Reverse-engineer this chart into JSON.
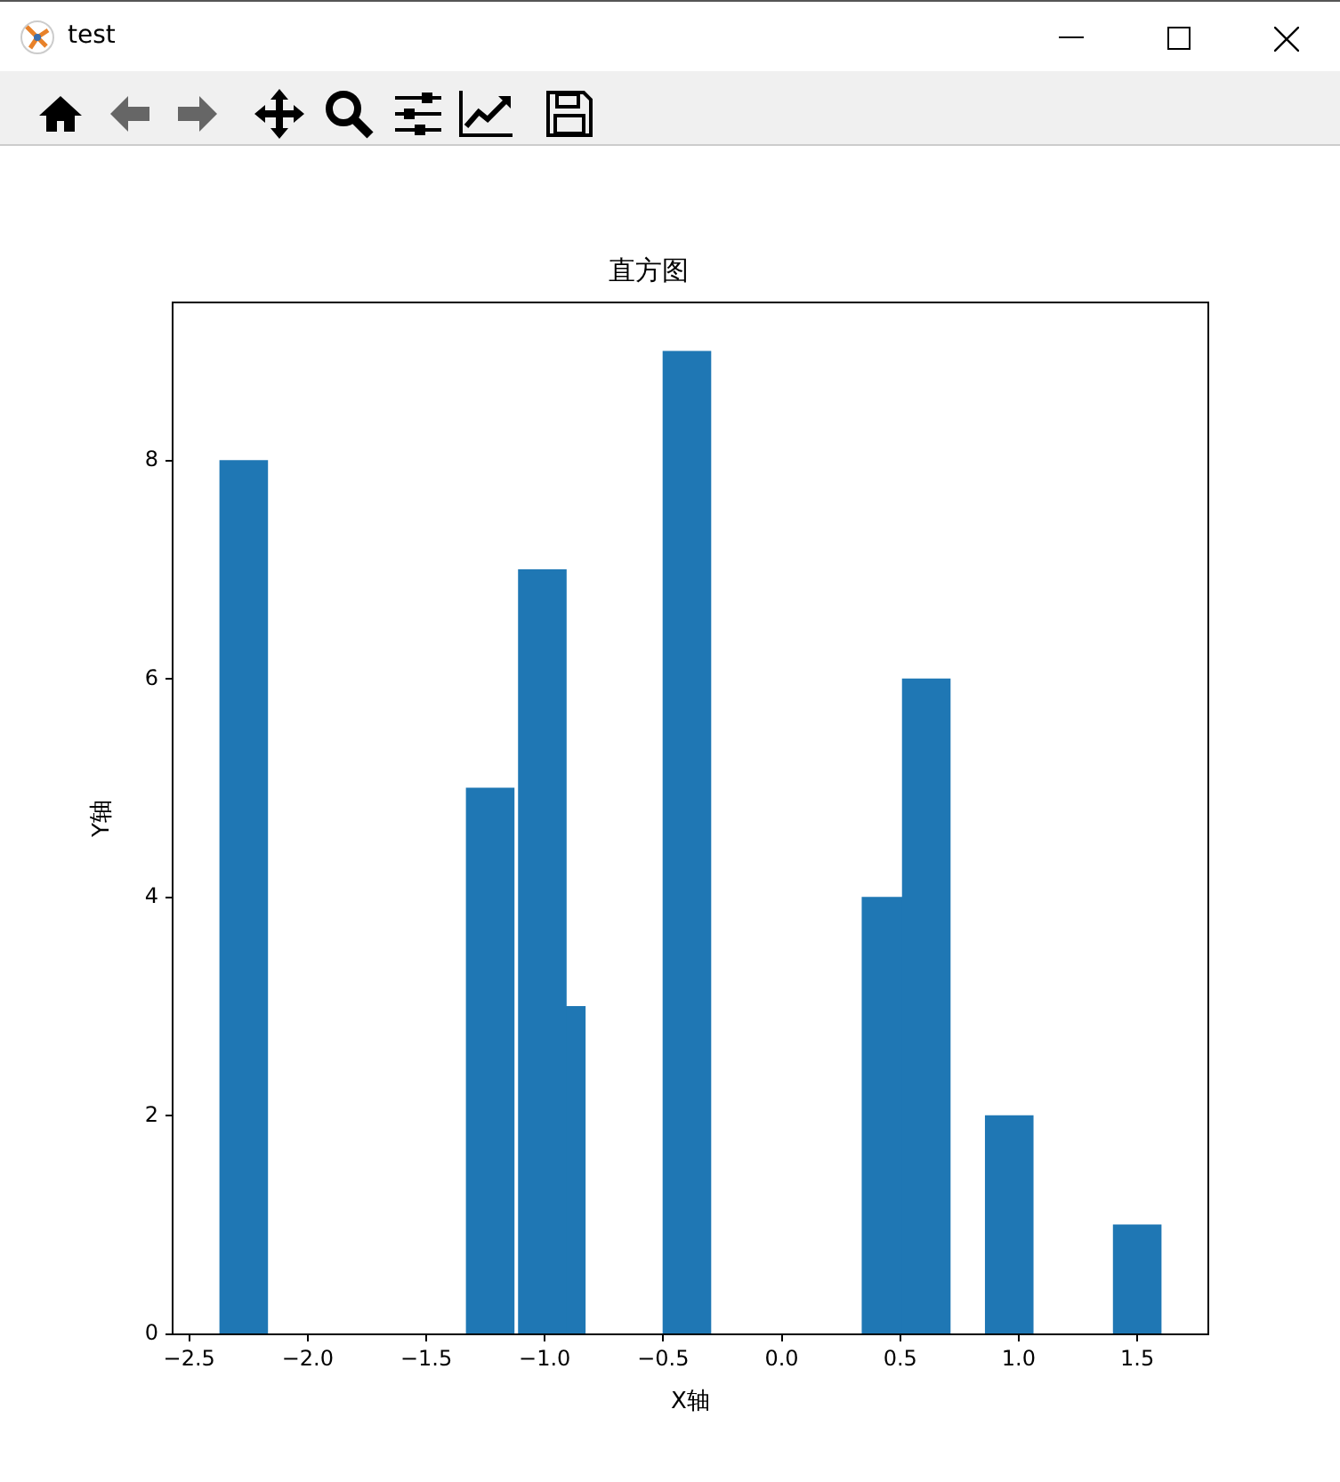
{
  "chart_data": {
    "type": "bar",
    "title": "直方图",
    "xlabel": "X轴",
    "ylabel": "Y轴",
    "annotations": [
      "test"
    ],
    "x": [
      -2.27,
      -1.23,
      -1.01,
      -0.93,
      -0.4,
      0.44,
      0.61,
      0.96,
      1.5
    ],
    "values": [
      8,
      5,
      7,
      3,
      9,
      4,
      6,
      2,
      1
    ],
    "color": "#1f77b4",
    "xlim": [
      -2.57,
      1.8
    ],
    "xticks": [
      {
        "value": -2.5,
        "label": "−2.5"
      },
      {
        "value": -2,
        "label": "−2.0"
      },
      {
        "value": -1.5,
        "label": "−1.5"
      },
      {
        "value": -1,
        "label": "−1.0"
      },
      {
        "value": -0.5,
        "label": "−0.5"
      },
      {
        "value": 0,
        "label": "0.0"
      },
      {
        "value": 0.5,
        "label": "0.5"
      },
      {
        "value": 1,
        "label": "1.0"
      },
      {
        "value": 1.5,
        "label": "1.5"
      }
    ],
    "ylim": [
      0,
      9.45
    ],
    "yticks": [
      0,
      2,
      4,
      6,
      8
    ],
    "grid": false,
    "legend": false
  }
}
